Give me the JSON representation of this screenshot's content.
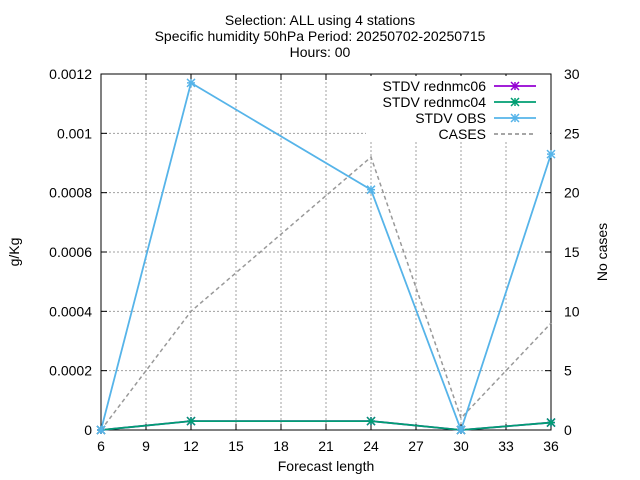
{
  "chart_data": {
    "type": "line",
    "title_lines": [
      "Selection: ALL using     4 stations",
      "Specific humidity 50hPa   Period: 20250702-20250715",
      "Hours: 00"
    ],
    "xlabel": "Forecast length",
    "ylabel": "g/Kg",
    "y2label": "No cases",
    "x_ticks": [
      6,
      9,
      12,
      15,
      18,
      21,
      24,
      27,
      30,
      33,
      36
    ],
    "y_ticks": [
      "0",
      "0.0002",
      "0.0004",
      "0.0006",
      "0.0008",
      "0.001",
      "0.0012"
    ],
    "y2_ticks": [
      "0",
      "5",
      "10",
      "15",
      "20",
      "25",
      "30"
    ],
    "xlim": [
      6,
      36
    ],
    "ylim": [
      0,
      0.0012
    ],
    "y2lim": [
      0,
      30
    ],
    "grid": true,
    "legend_position": "top-right",
    "series": [
      {
        "name": "STDV rednmc06",
        "axis": "y",
        "color": "#9400d3",
        "style": "line-points",
        "x": [
          6,
          12,
          24,
          30,
          36
        ],
        "values": [
          0,
          3e-05,
          3e-05,
          0,
          2.5e-05
        ]
      },
      {
        "name": "STDV rednmc04",
        "axis": "y",
        "color": "#009e73",
        "style": "line-points",
        "x": [
          6,
          12,
          24,
          30,
          36
        ],
        "values": [
          0,
          3e-05,
          3e-05,
          0,
          2.5e-05
        ]
      },
      {
        "name": "STDV OBS",
        "axis": "y",
        "color": "#56b4e9",
        "style": "line-points",
        "x": [
          6,
          12,
          24,
          30,
          36
        ],
        "values": [
          0,
          0.00117,
          0.00081,
          0,
          0.00093
        ]
      },
      {
        "name": "CASES",
        "axis": "y2",
        "color": "#999999",
        "style": "dashed",
        "x": [
          6,
          12,
          24,
          30,
          36
        ],
        "values": [
          0,
          10,
          23,
          1,
          9
        ]
      }
    ]
  }
}
